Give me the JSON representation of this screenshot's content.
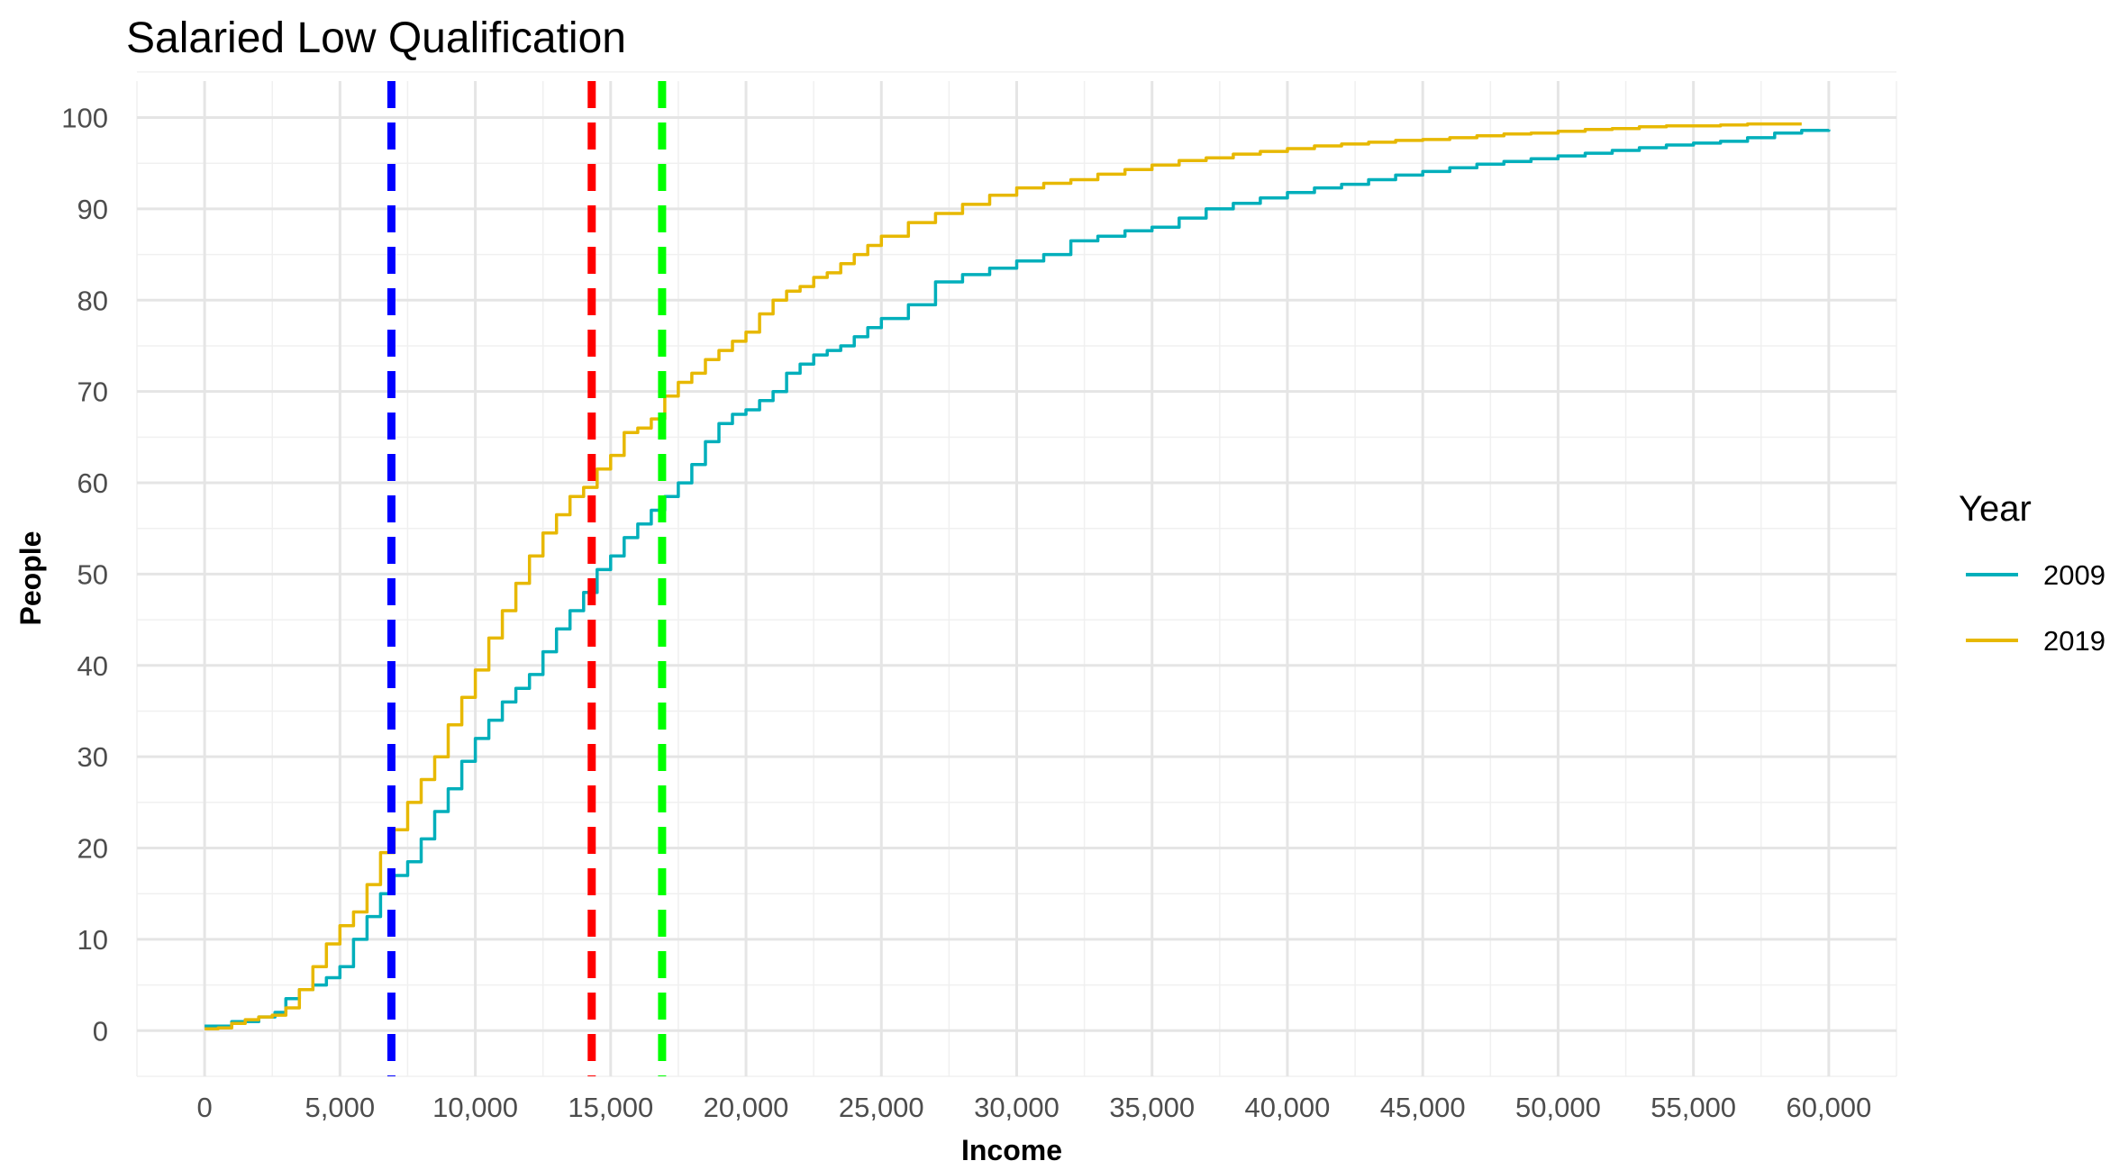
{
  "chart_data": {
    "type": "line",
    "title": "Salaried Low Qualification",
    "xlabel": "Income",
    "ylabel": "People",
    "xlim": [
      -2500,
      62500
    ],
    "ylim": [
      -5,
      104
    ],
    "x_ticks": [
      0,
      5000,
      10000,
      15000,
      20000,
      25000,
      30000,
      35000,
      40000,
      45000,
      50000,
      55000,
      60000
    ],
    "x_tick_labels": [
      "0",
      "5,000",
      "10,000",
      "15,000",
      "20,000",
      "25,000",
      "30,000",
      "35,000",
      "40,000",
      "45,000",
      "50,000",
      "55,000",
      "60,000"
    ],
    "y_ticks": [
      0,
      10,
      20,
      30,
      40,
      50,
      60,
      70,
      80,
      90,
      100
    ],
    "y_tick_labels": [
      "0",
      "10",
      "20",
      "30",
      "40",
      "50",
      "60",
      "70",
      "80",
      "90",
      "100"
    ],
    "grid": true,
    "legend": {
      "title": "Year",
      "position": "right"
    },
    "series": [
      {
        "name": "2009",
        "color": "#00AFBB",
        "x": [
          0,
          1000,
          2000,
          2600,
          3000,
          3500,
          4000,
          4500,
          5000,
          5500,
          6000,
          6500,
          7000,
          7500,
          8000,
          8500,
          9000,
          9500,
          10000,
          10500,
          11000,
          11500,
          12000,
          12500,
          13000,
          13500,
          14000,
          14500,
          15000,
          15500,
          16000,
          16500,
          17000,
          17500,
          18000,
          18500,
          19000,
          19500,
          20000,
          20500,
          21000,
          21500,
          22000,
          22500,
          23000,
          23500,
          24000,
          24500,
          25000,
          26000,
          27000,
          28000,
          29000,
          30000,
          31000,
          32000,
          33000,
          34000,
          35000,
          36000,
          37000,
          38000,
          39000,
          40000,
          41000,
          42000,
          43000,
          44000,
          45000,
          46000,
          47000,
          48000,
          49000,
          50000,
          51000,
          52000,
          53000,
          54000,
          55000,
          56000,
          57000,
          58000,
          59000,
          60000
        ],
        "y": [
          0.5,
          1.0,
          1.5,
          2.0,
          3.5,
          4.5,
          5.0,
          5.8,
          7.0,
          10.0,
          12.5,
          15.0,
          17.0,
          18.5,
          21.0,
          24.0,
          26.5,
          29.5,
          32.0,
          34.0,
          36.0,
          37.5,
          39.0,
          41.5,
          44.0,
          46.0,
          48.0,
          50.5,
          52.0,
          54.0,
          55.5,
          57.0,
          58.5,
          60.0,
          62.0,
          64.5,
          66.5,
          67.5,
          68.0,
          69.0,
          70.0,
          72.0,
          73.0,
          74.0,
          74.5,
          75.0,
          76.0,
          77.0,
          78.0,
          79.5,
          82.0,
          82.8,
          83.5,
          84.3,
          85.0,
          86.5,
          87.0,
          87.6,
          88.0,
          89.0,
          90.0,
          90.6,
          91.2,
          91.8,
          92.3,
          92.7,
          93.2,
          93.7,
          94.1,
          94.5,
          94.9,
          95.2,
          95.5,
          95.8,
          96.1,
          96.4,
          96.7,
          97.0,
          97.2,
          97.4,
          97.8,
          98.3,
          98.6,
          98.7
        ]
      },
      {
        "name": "2019",
        "color": "#E7B800",
        "x": [
          0,
          500,
          1000,
          1500,
          2000,
          2500,
          3000,
          3500,
          4000,
          4500,
          5000,
          5500,
          6000,
          6500,
          7000,
          7500,
          8000,
          8500,
          9000,
          9500,
          10000,
          10500,
          11000,
          11500,
          12000,
          12500,
          13000,
          13500,
          14000,
          14500,
          15000,
          15500,
          16000,
          16500,
          17000,
          17500,
          18000,
          18500,
          19000,
          19500,
          20000,
          20500,
          21000,
          21500,
          22000,
          22500,
          23000,
          23500,
          24000,
          24500,
          25000,
          26000,
          27000,
          28000,
          29000,
          30000,
          31000,
          32000,
          33000,
          34000,
          35000,
          36000,
          37000,
          38000,
          39000,
          40000,
          41000,
          42000,
          43000,
          44000,
          45000,
          46000,
          47000,
          48000,
          49000,
          50000,
          51000,
          52000,
          53000,
          54000,
          55000,
          56000,
          57000,
          58000,
          59000
        ],
        "y": [
          0.2,
          0.3,
          0.8,
          1.2,
          1.5,
          1.7,
          2.5,
          4.5,
          7.0,
          9.5,
          11.5,
          13.0,
          16.0,
          19.5,
          22.0,
          25.0,
          27.5,
          30.0,
          33.5,
          36.5,
          39.5,
          43.0,
          46.0,
          49.0,
          52.0,
          54.5,
          56.5,
          58.5,
          59.5,
          61.5,
          63.0,
          65.5,
          66.0,
          67.0,
          69.5,
          71.0,
          72.0,
          73.5,
          74.5,
          75.5,
          76.5,
          78.5,
          80.0,
          81.0,
          81.5,
          82.5,
          83.0,
          84.0,
          85.0,
          86.0,
          87.0,
          88.5,
          89.5,
          90.5,
          91.5,
          92.3,
          92.8,
          93.2,
          93.8,
          94.3,
          94.8,
          95.3,
          95.6,
          96.0,
          96.3,
          96.6,
          96.9,
          97.1,
          97.3,
          97.5,
          97.6,
          97.8,
          98.0,
          98.2,
          98.3,
          98.5,
          98.7,
          98.8,
          99.0,
          99.1,
          99.1,
          99.2,
          99.3,
          99.3,
          99.3
        ]
      }
    ],
    "reference_lines": [
      {
        "x": 6900,
        "color": "#0000ff",
        "style": "dashed"
      },
      {
        "x": 14300,
        "color": "#ff0000",
        "style": "dashed"
      },
      {
        "x": 16900,
        "color": "#00ff00",
        "style": "dashed"
      }
    ]
  }
}
